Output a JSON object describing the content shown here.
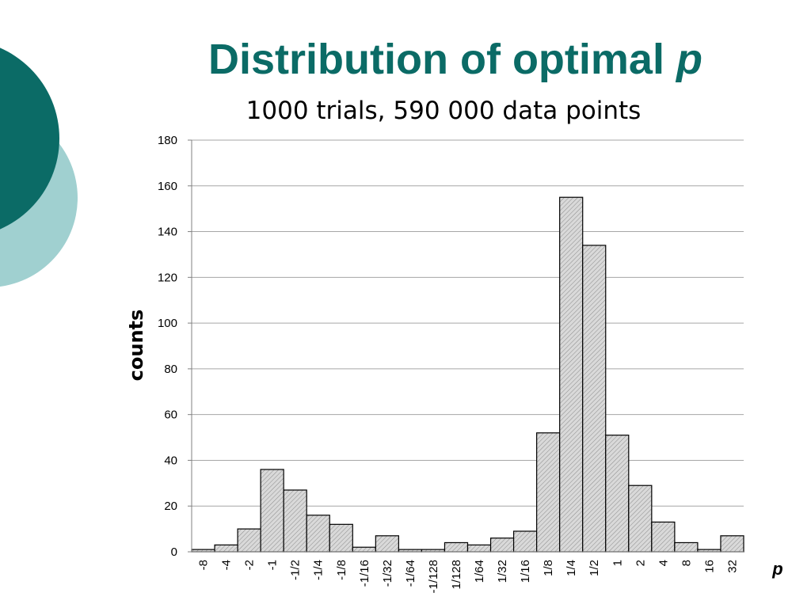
{
  "slide": {
    "title_main": "Distribution of optimal ",
    "title_var": "p",
    "subtitle": "1000 trials, 590 000 data points"
  },
  "colors": {
    "title": "#0b6b66",
    "circle_dark": "#0b6b66",
    "circle_light": "#a0d0d0",
    "bar_fill": "#d4d4d4",
    "grid": "#a6a6a6"
  },
  "chart_data": {
    "type": "bar",
    "title": "",
    "xlabel": "p",
    "ylabel": "counts",
    "ylim": [
      0,
      180
    ],
    "yticks": [
      0,
      20,
      40,
      60,
      80,
      100,
      120,
      140,
      160,
      180
    ],
    "grid": "horizontal",
    "categories": [
      "-8",
      "-4",
      "-2",
      "-1",
      "-1/2",
      "-1/4",
      "-1/8",
      "-1/16",
      "-1/32",
      "-1/64",
      "-1/128",
      "1/128",
      "1/64",
      "1/32",
      "1/16",
      "1/8",
      "1/4",
      "1/2",
      "1",
      "2",
      "4",
      "8",
      "16",
      "32"
    ],
    "values": [
      1,
      3,
      10,
      36,
      27,
      16,
      12,
      2,
      7,
      1,
      1,
      4,
      3,
      6,
      9,
      52,
      155,
      134,
      51,
      29,
      13,
      4,
      1,
      7
    ]
  }
}
